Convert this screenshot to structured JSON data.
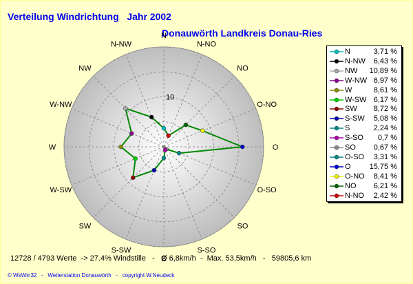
{
  "header": {
    "title": "Verteilung Windrichtung   Jahr 2002",
    "subtitle": "Donauwörth Landkreis Donau-Ries"
  },
  "chart_data": {
    "type": "radar",
    "title": "Verteilung Windrichtung   Jahr 2002",
    "subtitle": "Donauwörth Landkreis Donau-Ries",
    "unit": "%",
    "rlim": [
      0,
      20
    ],
    "ring_labels": [
      {
        "value": 10,
        "label": "10"
      }
    ],
    "directions": [
      "N",
      "N-NO",
      "NO",
      "O-NO",
      "O",
      "O-SO",
      "SO",
      "S-SO",
      "S",
      "S-SW",
      "SW",
      "W-SW",
      "W",
      "W-NW",
      "NW",
      "N-NW"
    ],
    "values": [
      3.71,
      2.42,
      6.21,
      8.41,
      15.75,
      3.31,
      0.67,
      0.7,
      2.24,
      5.08,
      8.72,
      6.17,
      8.61,
      6.97,
      10.89,
      6.43
    ],
    "line_color": "#008800",
    "marker_colors": [
      "#00BBBB",
      "#CC0000",
      "#006600",
      "#EEEE00",
      "#0000CC",
      "#008888",
      "#888888",
      "#AA00AA",
      "#008888",
      "#0000AA",
      "#880000",
      "#00CC00",
      "#888800",
      "#880088",
      "#AAAAAA",
      "#000000"
    ],
    "legend": [
      {
        "name": "N",
        "value": "3,71 %",
        "color": "#00BBBB"
      },
      {
        "name": "N-NW",
        "value": "6,43 %",
        "color": "#000000"
      },
      {
        "name": "NW",
        "value": "10,89 %",
        "color": "#AAAAAA"
      },
      {
        "name": "W-NW",
        "value": "6,97 %",
        "color": "#880088"
      },
      {
        "name": "W",
        "value": "8,61 %",
        "color": "#888800"
      },
      {
        "name": "W-SW",
        "value": "6,17 %",
        "color": "#00CC00"
      },
      {
        "name": "SW",
        "value": "8,72 %",
        "color": "#880000"
      },
      {
        "name": "S-SW",
        "value": "5,08 %",
        "color": "#0000AA"
      },
      {
        "name": "S",
        "value": "2,24 %",
        "color": "#008888"
      },
      {
        "name": "S-SO",
        "value": "0,7 %",
        "color": "#AA00AA"
      },
      {
        "name": "SO",
        "value": "0,67 %",
        "color": "#888888"
      },
      {
        "name": "O-SO",
        "value": "3,31 %",
        "color": "#008888"
      },
      {
        "name": "O",
        "value": "15,75 %",
        "color": "#0000CC"
      },
      {
        "name": "O-NO",
        "value": "8,41 %",
        "color": "#EEEE00"
      },
      {
        "name": "NO",
        "value": "6,21 %",
        "color": "#006600"
      },
      {
        "name": "N-NO",
        "value": "2,42 %",
        "color": "#CC0000"
      }
    ]
  },
  "footer": {
    "stats": "12728 / 4793 Werte  -> 27.4% Windstille   -   Ø 6,8km/h  -  Max. 53,5km/h   -   59805,6 km",
    "credits": "© WsWin32   -   Wetterstation Donauwörth   -   copyright W.Neudeck"
  }
}
